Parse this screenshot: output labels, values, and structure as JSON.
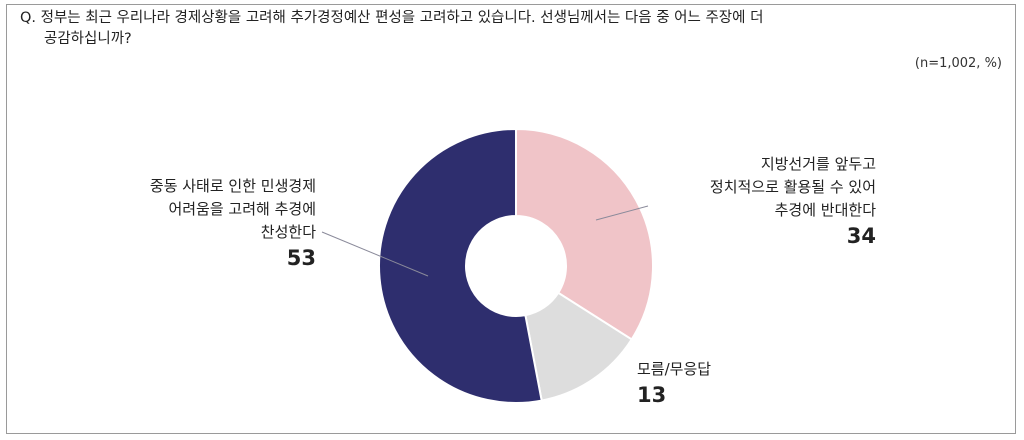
{
  "question": {
    "line1": "Q. 정부는 최근 우리나라 경제상황을 고려해 추가경정예산 편성을 고려하고 있습니다. 선생님께서는 다음 중 어느 주장에 더",
    "line2": "공감하십니까?"
  },
  "note": "(n=1,002, %)",
  "chart_data": {
    "type": "pie",
    "donut": true,
    "slices": [
      {
        "label_lines": [
          "지방선거를 앞두고",
          "정치적으로 활용될 수 있어",
          "추경에 반대한다"
        ],
        "value": 34,
        "color": "#f0c4c8"
      },
      {
        "label_lines": [
          "모름/무응답"
        ],
        "value": 13,
        "color": "#dddddd"
      },
      {
        "label_lines": [
          "중동 사태로 인한 민생경제",
          "어려움을 고려해 추경에",
          "찬성한다"
        ],
        "value": 53,
        "color": "#2e2e6e"
      }
    ]
  }
}
